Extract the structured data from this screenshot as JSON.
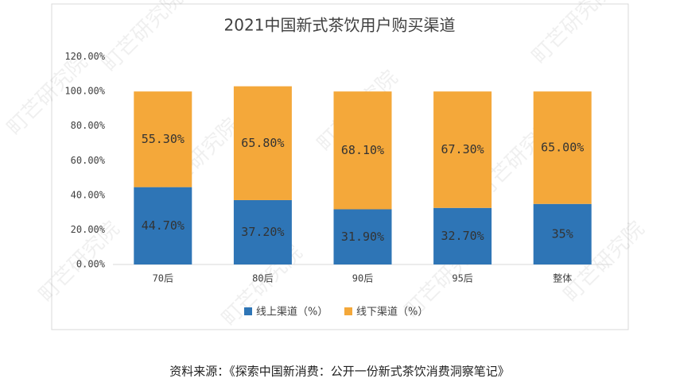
{
  "chart_data": {
    "type": "stacked-bar",
    "title": "2021中国新式茶饮用户购买渠道",
    "categories": [
      "70后",
      "80后",
      "90后",
      "95后",
      "整体"
    ],
    "series": [
      {
        "name": "线上渠道（%）",
        "color": "#2e75b6",
        "values": [
          44.7,
          37.2,
          31.9,
          32.7,
          35
        ],
        "value_labels": [
          "44.70%",
          "37.20%",
          "31.90%",
          "32.70%",
          "35%"
        ]
      },
      {
        "name": "线下渠道（%）",
        "color": "#f4a83a",
        "values": [
          55.3,
          65.8,
          68.1,
          67.3,
          65.0
        ],
        "value_labels": [
          "55.30%",
          "65.80%",
          "68.10%",
          "67.30%",
          "65.00%"
        ]
      }
    ],
    "ylim": [
      0,
      120
    ],
    "yticks": [
      {
        "value": 0,
        "label": "0.00%"
      },
      {
        "value": 20,
        "label": "20.00%"
      },
      {
        "value": 40,
        "label": "40.00%"
      },
      {
        "value": 60,
        "label": "60.00%"
      },
      {
        "value": 80,
        "label": "80.00%"
      },
      {
        "value": 100,
        "label": "100.00%"
      },
      {
        "value": 120,
        "label": "120.00%"
      }
    ],
    "legend": "bottom",
    "source": "资料来源：《探索中国新消费：公开一份新式茶饮消费洞察笔记》",
    "watermark": "町芒研究院"
  }
}
